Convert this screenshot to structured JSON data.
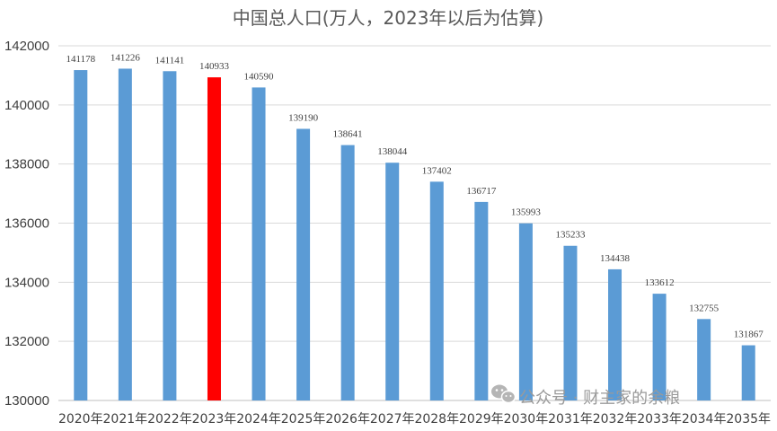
{
  "chart_data": {
    "type": "bar",
    "title": "中国总人口(万人，2023年以后为估算)",
    "xlabel": "",
    "ylabel": "",
    "ylim": [
      130000,
      142000
    ],
    "ytick_step": 2000,
    "grid": true,
    "categories": [
      "2020年",
      "2021年",
      "2022年",
      "2023年",
      "2024年",
      "2025年",
      "2026年",
      "2027年",
      "2028年",
      "2029年",
      "2030年",
      "2031年",
      "2032年",
      "2033年",
      "2034年",
      "2035年"
    ],
    "values": [
      141178,
      141226,
      141141,
      140933,
      140590,
      139190,
      138641,
      138044,
      137402,
      136717,
      135993,
      135233,
      134438,
      133612,
      132755,
      131867
    ],
    "bar_color": "#5B9BD5",
    "highlight_color": "#FF0000",
    "highlight_index": 3
  },
  "watermark": {
    "icon": "wechat-icon",
    "text": "公众号 · 财主家的余粮"
  }
}
